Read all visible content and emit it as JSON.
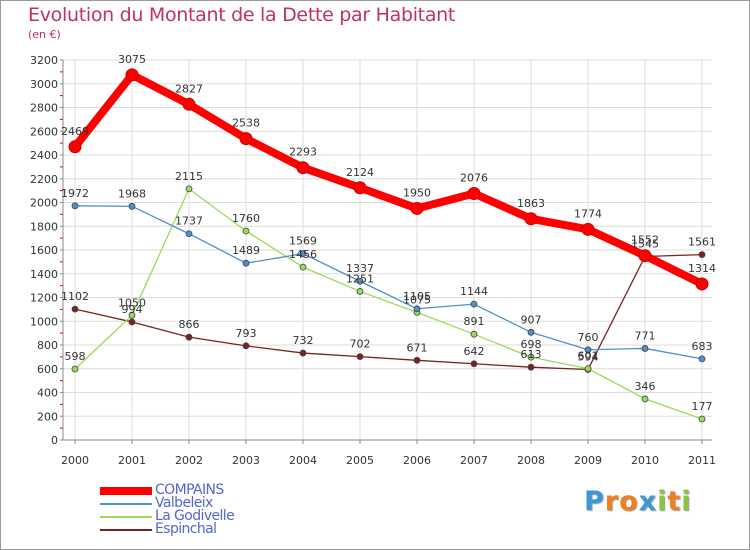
{
  "title": "Evolution du Montant de la Dette par Habitant",
  "subtitle": "(en €)",
  "logo": {
    "text": "Proxiti",
    "letters": [
      "P",
      "r",
      "o",
      "x",
      "i",
      "t",
      "i"
    ],
    "colors": [
      "#3a9ad9",
      "#f07f1e",
      "#f07f1e",
      "#3a9ad9",
      "#8cc63f",
      "#f07f1e",
      "#8cc63f"
    ]
  },
  "chart_data": {
    "type": "line",
    "title": "Evolution du Montant de la Dette par Habitant",
    "subtitle": "(en €)",
    "x": [
      "2000",
      "2001",
      "2002",
      "2003",
      "2004",
      "2005",
      "2006",
      "2007",
      "2008",
      "2009",
      "2010",
      "2011"
    ],
    "ylim": [
      0,
      3200
    ],
    "yticks": [
      0,
      200,
      400,
      600,
      800,
      1000,
      1200,
      1400,
      1600,
      1800,
      2000,
      2200,
      2400,
      2600,
      2800,
      3000,
      3200
    ],
    "grid": true,
    "legend_position": "bottom-left",
    "series": [
      {
        "name": "COMPAINS",
        "color": "#ff0000",
        "values": [
          2469,
          3075,
          2827,
          2538,
          2293,
          2124,
          1950,
          2076,
          1863,
          1774,
          1552,
          1314
        ]
      },
      {
        "name": "Valbeleix",
        "color": "#4f8fcc",
        "values": [
          1972,
          1968,
          1737,
          1489,
          1569,
          1337,
          1105,
          1144,
          907,
          760,
          771,
          683
        ]
      },
      {
        "name": "La Godivelle",
        "color": "#99dd55",
        "values": [
          598,
          1050,
          2115,
          1760,
          1456,
          1251,
          1075,
          891,
          698,
          601,
          346,
          177
        ]
      },
      {
        "name": "Espinchal",
        "color": "#7a2222",
        "values": [
          1102,
          994,
          866,
          793,
          732,
          702,
          671,
          642,
          613,
          594,
          1545,
          1561
        ]
      }
    ]
  }
}
